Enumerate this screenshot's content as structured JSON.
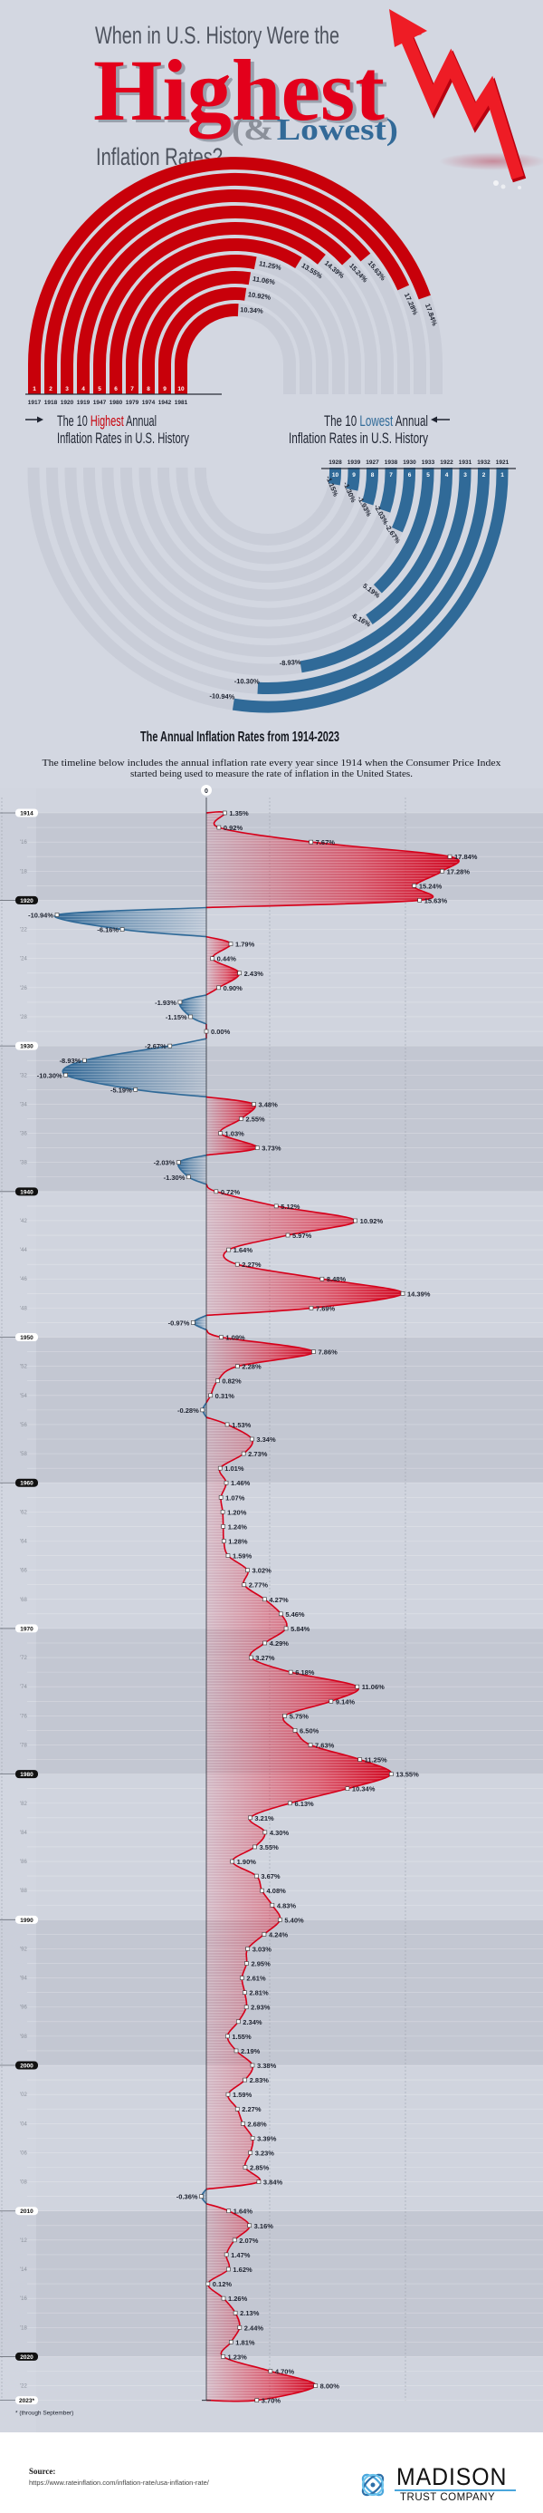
{
  "header": {
    "line1": "When in U.S. History Were the",
    "highlight": "Highest",
    "paren_open": "(",
    "amp": "&",
    "lowest": "Lowest",
    "paren_close": ")",
    "line3": "Inflation Rates?"
  },
  "highest": {
    "title_pre": "The 10 ",
    "title_em": "Highest",
    "title_post": " Annual",
    "title_line2": "Inflation Rates in U.S. History",
    "items": [
      {
        "rank": "1",
        "year": "1917",
        "value": 17.84
      },
      {
        "rank": "2",
        "year": "1918",
        "value": 17.28
      },
      {
        "rank": "3",
        "year": "1920",
        "value": 15.63
      },
      {
        "rank": "4",
        "year": "1919",
        "value": 15.24
      },
      {
        "rank": "5",
        "year": "1947",
        "value": 14.39
      },
      {
        "rank": "6",
        "year": "1980",
        "value": 13.55
      },
      {
        "rank": "7",
        "year": "1979",
        "value": 11.25
      },
      {
        "rank": "8",
        "year": "1974",
        "value": 11.06
      },
      {
        "rank": "9",
        "year": "1942",
        "value": 10.92
      },
      {
        "rank": "10",
        "year": "1981",
        "value": 10.34
      }
    ]
  },
  "lowest": {
    "title_pre": "The 10 ",
    "title_em": "Lowest",
    "title_post": " Annual",
    "title_line2": "Inflation Rates in U.S. History",
    "items": [
      {
        "rank": "1",
        "year": "1921",
        "value": -10.94
      },
      {
        "rank": "2",
        "year": "1932",
        "value": -10.3
      },
      {
        "rank": "3",
        "year": "1931",
        "value": -8.93
      },
      {
        "rank": "4",
        "year": "1922",
        "value": -6.16
      },
      {
        "rank": "5",
        "year": "1933",
        "value": -5.19
      },
      {
        "rank": "6",
        "year": "1930",
        "value": -2.67
      },
      {
        "rank": "7",
        "year": "1938",
        "value": -2.03
      },
      {
        "rank": "8",
        "year": "1927",
        "value": -1.93
      },
      {
        "rank": "9",
        "year": "1939",
        "value": -1.3
      },
      {
        "rank": "10",
        "year": "1928",
        "value": -1.15
      }
    ]
  },
  "timeline": {
    "title": "The Annual Inflation Rates from 1914-2023",
    "description_line1": "The timeline below includes the annual inflation rate every year since 1914 when the Consumer Price Index",
    "description_line2": "started being used to measure the rate of inflation in the United States.",
    "zero_label": "0",
    "last_year_label": "2023*",
    "footnote": "* (through September)"
  },
  "chart_data": {
    "type": "area",
    "orientation": "vertical-timeline",
    "x_label": "",
    "y_label": "",
    "unit": "%",
    "years": [
      1914,
      1915,
      1916,
      1917,
      1918,
      1919,
      1920,
      1921,
      1922,
      1923,
      1924,
      1925,
      1926,
      1927,
      1928,
      1929,
      1930,
      1931,
      1932,
      1933,
      1934,
      1935,
      1936,
      1937,
      1938,
      1939,
      1940,
      1941,
      1942,
      1943,
      1944,
      1945,
      1946,
      1947,
      1948,
      1949,
      1950,
      1951,
      1952,
      1953,
      1954,
      1955,
      1956,
      1957,
      1958,
      1959,
      1960,
      1961,
      1962,
      1963,
      1964,
      1965,
      1966,
      1967,
      1968,
      1969,
      1970,
      1971,
      1972,
      1973,
      1974,
      1975,
      1976,
      1977,
      1978,
      1979,
      1980,
      1981,
      1982,
      1983,
      1984,
      1985,
      1986,
      1987,
      1988,
      1989,
      1990,
      1991,
      1992,
      1993,
      1994,
      1995,
      1996,
      1997,
      1998,
      1999,
      2000,
      2001,
      2002,
      2003,
      2004,
      2005,
      2006,
      2007,
      2008,
      2009,
      2010,
      2011,
      2012,
      2013,
      2014,
      2015,
      2016,
      2017,
      2018,
      2019,
      2020,
      2021,
      2022,
      2023
    ],
    "values": [
      1.35,
      0.92,
      7.67,
      17.84,
      17.28,
      15.24,
      15.63,
      -10.94,
      -6.16,
      1.79,
      0.44,
      2.43,
      0.9,
      -1.93,
      -1.15,
      0.0,
      -2.67,
      -8.93,
      -10.3,
      -5.19,
      3.48,
      2.55,
      1.03,
      3.73,
      -2.03,
      -1.3,
      0.72,
      5.12,
      10.92,
      5.97,
      1.64,
      2.27,
      8.48,
      14.39,
      7.69,
      -0.97,
      1.09,
      7.86,
      2.28,
      0.82,
      0.31,
      -0.28,
      1.53,
      3.34,
      2.73,
      1.01,
      1.46,
      1.07,
      1.2,
      1.24,
      1.28,
      1.59,
      3.02,
      2.77,
      4.27,
      5.46,
      5.84,
      4.29,
      3.27,
      6.18,
      11.06,
      9.14,
      5.75,
      6.5,
      7.63,
      11.25,
      13.55,
      10.34,
      6.13,
      3.21,
      4.3,
      3.55,
      1.9,
      3.67,
      4.08,
      4.83,
      5.4,
      4.24,
      3.03,
      2.95,
      2.61,
      2.81,
      2.93,
      2.34,
      1.55,
      2.19,
      3.38,
      2.83,
      1.59,
      2.27,
      2.68,
      3.39,
      3.23,
      2.85,
      3.84,
      -0.36,
      1.64,
      3.16,
      2.07,
      1.47,
      1.62,
      0.12,
      1.26,
      2.13,
      2.44,
      1.81,
      1.23,
      4.7,
      8.0,
      3.7
    ],
    "grid": true
  },
  "footer": {
    "source_label": "Source:",
    "source_url": "https://www.rateinflation.com/inflation-rate/usa-inflation-rate/",
    "logo_name": "MADISON",
    "logo_sub": "TRUST COMPANY"
  },
  "colors": {
    "background": "#d3d7e1",
    "red": "#c8000a",
    "bright_red": "#e3001b",
    "blue": "#306a98",
    "track": "#c9cdd8",
    "text_dark": "#1e2330"
  }
}
